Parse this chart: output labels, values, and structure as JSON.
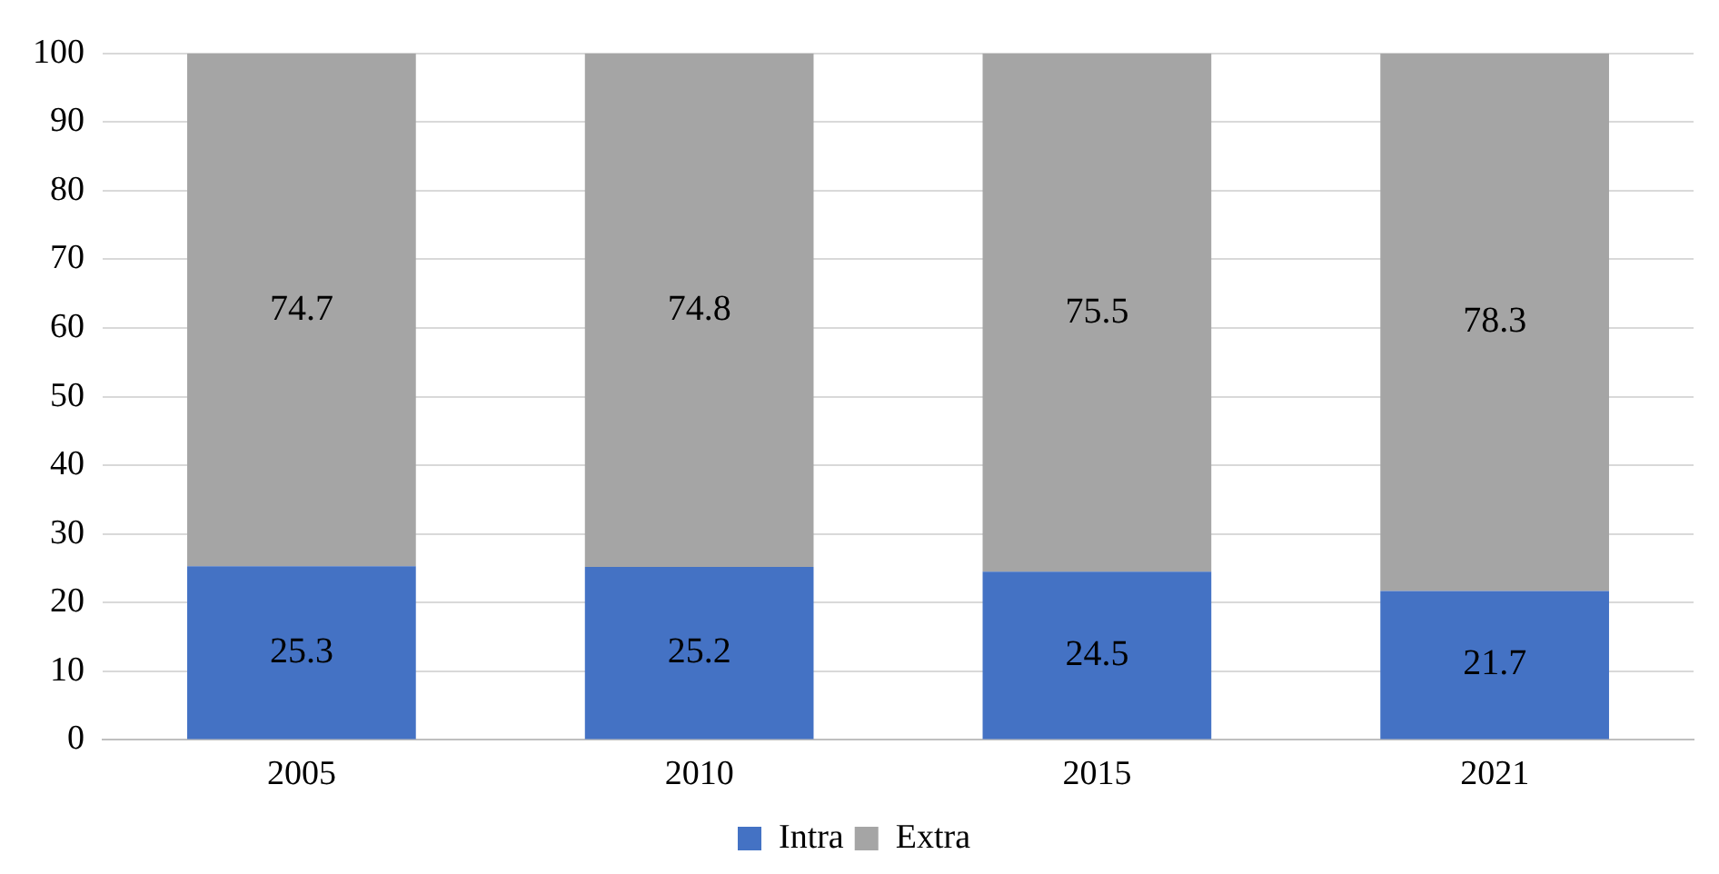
{
  "chart_data": {
    "type": "bar",
    "categories": [
      "2005",
      "2010",
      "2015",
      "2021"
    ],
    "series": [
      {
        "name": "Intra",
        "color": "#4472c4",
        "values": [
          25.3,
          25.2,
          24.5,
          21.7
        ]
      },
      {
        "name": "Extra",
        "color": "#a5a5a5",
        "values": [
          74.7,
          74.8,
          75.5,
          78.3
        ]
      }
    ],
    "stacked": true,
    "data_labels": true,
    "ylim": [
      0,
      100
    ],
    "yticks": [
      0,
      10,
      20,
      30,
      40,
      50,
      60,
      70,
      80,
      90,
      100
    ],
    "grid": "y",
    "legend": "bottom"
  }
}
